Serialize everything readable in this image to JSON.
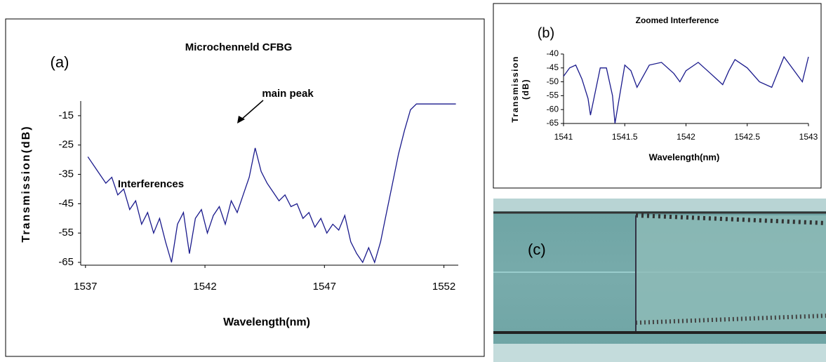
{
  "chart_data": [
    {
      "type": "line",
      "title": "Microchenneld CFBG",
      "panel_label": "(a)",
      "x_label": "Wavelength(nm)",
      "y_label": "Transmission(dB)",
      "annotations": [
        "main peak",
        "Interferences"
      ],
      "xlim": [
        1536.8,
        1552.6
      ],
      "xticks": [
        1537,
        1542,
        1547,
        1552
      ],
      "ylim": [
        -65,
        -10
      ],
      "yticks": [
        -65,
        -55,
        -45,
        -35,
        -25,
        -15
      ],
      "x": [
        1537.1,
        1537.35,
        1537.6,
        1537.85,
        1538.1,
        1538.35,
        1538.6,
        1538.85,
        1539.1,
        1539.35,
        1539.6,
        1539.85,
        1540.1,
        1540.35,
        1540.6,
        1540.85,
        1541.1,
        1541.35,
        1541.6,
        1541.85,
        1542.1,
        1542.35,
        1542.6,
        1542.85,
        1543.1,
        1543.35,
        1543.6,
        1543.85,
        1544.1,
        1544.35,
        1544.6,
        1544.85,
        1545.1,
        1545.35,
        1545.6,
        1545.85,
        1546.1,
        1546.35,
        1546.6,
        1546.85,
        1547.1,
        1547.35,
        1547.6,
        1547.85,
        1548.1,
        1548.35,
        1548.6,
        1548.85,
        1549.1,
        1549.35,
        1549.6,
        1549.85,
        1550.1,
        1550.35,
        1550.6,
        1550.85,
        1551.1,
        1551.35,
        1551.6,
        1551.85,
        1552.1,
        1552.5
      ],
      "series": [
        {
          "color": "#1a1a8c",
          "values": [
            -29,
            -32,
            -35,
            -38,
            -36,
            -42,
            -40,
            -47,
            -44,
            -52,
            -48,
            -55,
            -50,
            -58,
            -65,
            -52,
            -48,
            -62,
            -50,
            -47,
            -55,
            -49,
            -46,
            -52,
            -44,
            -48,
            -42,
            -36,
            -26,
            -34,
            -38,
            -41,
            -44,
            -42,
            -46,
            -45,
            -50,
            -48,
            -53,
            -50,
            -55,
            -52,
            -54,
            -49,
            -58,
            -62,
            -65,
            -60,
            -65,
            -58,
            -48,
            -38,
            -28,
            -20,
            -13,
            -11,
            -11,
            -11,
            -11,
            -11,
            -11,
            -11
          ]
        }
      ]
    },
    {
      "type": "line",
      "title": "Zoomed Interference",
      "panel_label": "(b)",
      "x_label": "Wavelength(nm)",
      "y_label_lines": [
        "Transmission",
        "(dB)"
      ],
      "xlim": [
        1541,
        1543
      ],
      "xticks": [
        1541,
        1541.5,
        1542,
        1542.5,
        1543
      ],
      "ylim": [
        -65,
        -40
      ],
      "yticks": [
        -65,
        -60,
        -55,
        -50,
        -45,
        -40
      ],
      "x": [
        1541,
        1541.05,
        1541.1,
        1541.15,
        1541.2,
        1541.22,
        1541.3,
        1541.35,
        1541.4,
        1541.42,
        1541.5,
        1541.55,
        1541.6,
        1541.7,
        1541.8,
        1541.9,
        1541.95,
        1542,
        1542.1,
        1542.2,
        1542.3,
        1542.35,
        1542.4,
        1542.5,
        1542.6,
        1542.7,
        1542.8,
        1542.9,
        1542.95,
        1543
      ],
      "series": [
        {
          "color": "#1a1a8c",
          "values": [
            -48,
            -45,
            -44,
            -49,
            -56,
            -62,
            -45,
            -45,
            -55,
            -65,
            -44,
            -46,
            -52,
            -44,
            -43,
            -47,
            -50,
            -46,
            -43,
            -47,
            -51,
            -46,
            -42,
            -45,
            -50,
            -52,
            -41,
            -47,
            -50,
            -41
          ]
        }
      ]
    }
  ],
  "photo": {
    "label": "(c)"
  }
}
